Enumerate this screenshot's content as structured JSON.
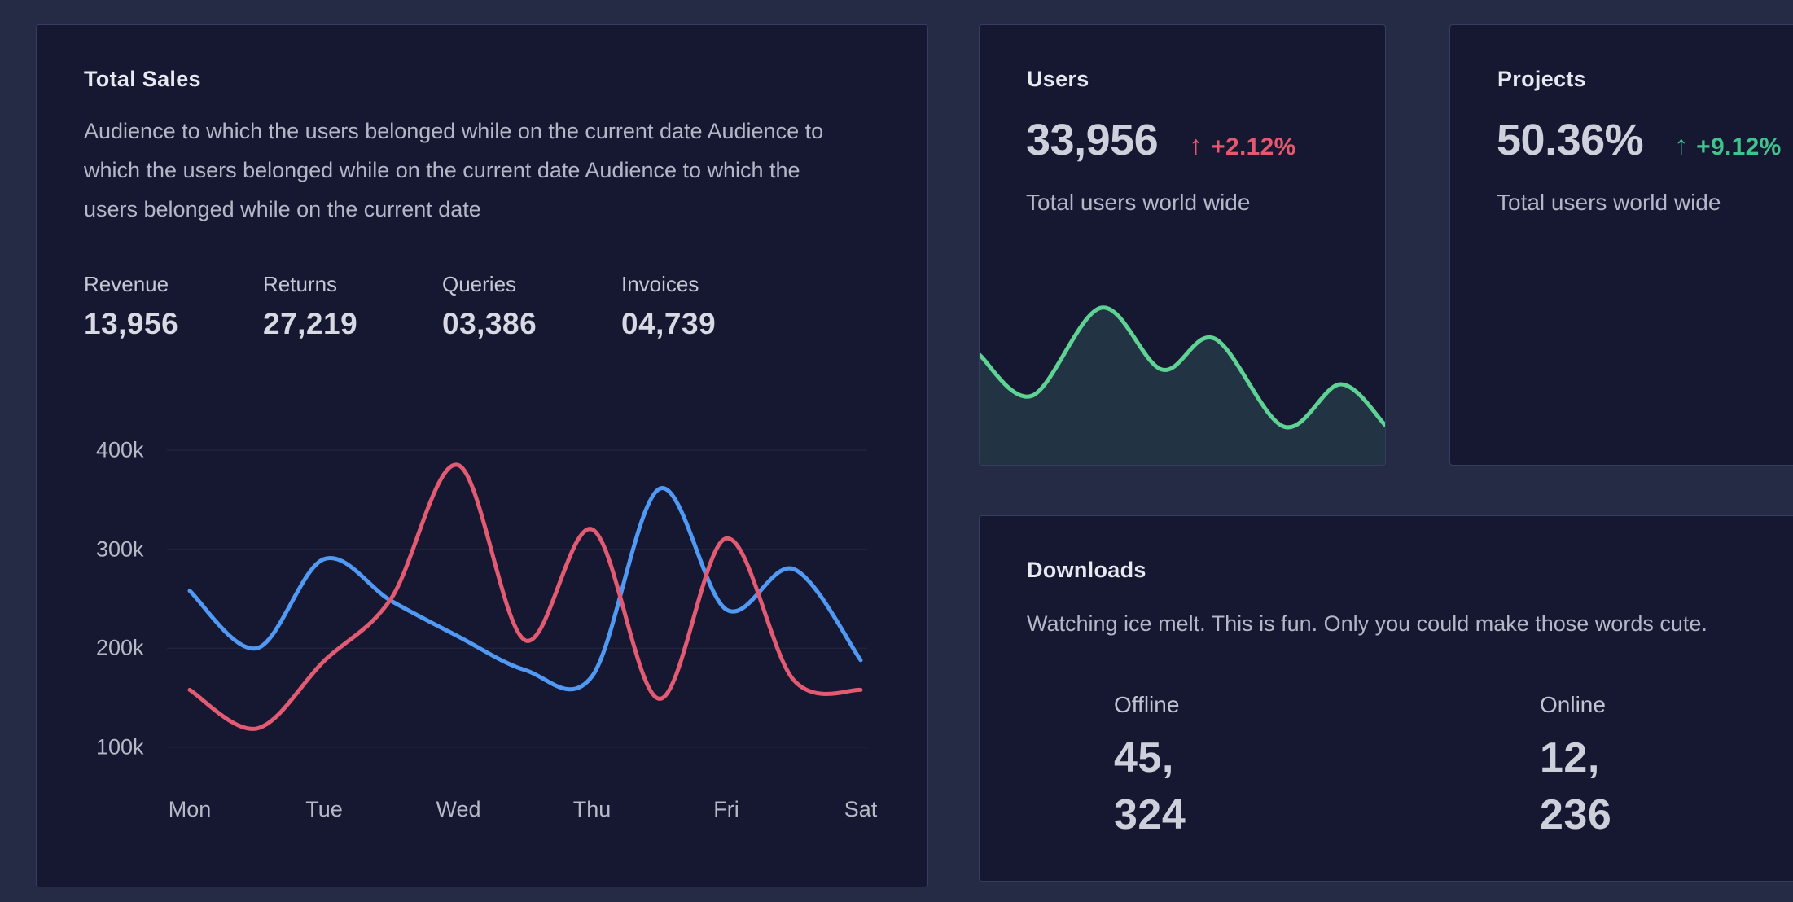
{
  "theme": {
    "page_bg": "#262b45",
    "card_bg": "#161831",
    "card_border": "#373d5e",
    "grid_color": "rgba(255,255,255,0.05)",
    "pink": "#e4596e",
    "green": "#3fc48e",
    "red_line": "#e25b72",
    "blue_line": "#509af5",
    "green_line": "#5ed394",
    "sparkline_fill": "#223343"
  },
  "total_sales_card": {
    "title": "Total Sales",
    "description": "Audience to which the users belonged while on the current date Audience to which the users belonged while on the current date Audience to which the users belonged while on the current date",
    "stats": [
      {
        "label": "Revenue",
        "value": "13,956"
      },
      {
        "label": "Returns",
        "value": "27,219"
      },
      {
        "label": "Queries",
        "value": "03,386"
      },
      {
        "label": "Invoices",
        "value": "04,739"
      }
    ]
  },
  "users_card": {
    "title": "Users",
    "value": "33,956",
    "delta_arrow": "↑",
    "delta": "+2.12%",
    "subtitle": "Total users world wide"
  },
  "projects_card": {
    "title": "Projects",
    "value": "50.36%",
    "delta_arrow": "↑",
    "delta": "+9.12%",
    "subtitle": "Total users world wide"
  },
  "downloads_card": {
    "title": "Downloads",
    "description": "Watching ice melt. This is fun. Only you could make those words cute.",
    "stats": [
      {
        "label": "Offline",
        "value_line1": "45,",
        "value_line2": "324"
      },
      {
        "label": "Online",
        "value_line1": "12,",
        "value_line2": "236"
      }
    ]
  },
  "chart_data": [
    {
      "type": "line",
      "card": "total-sales",
      "categories": [
        "Mon",
        "Tue",
        "Wed",
        "Thu",
        "Fri",
        "Sat"
      ],
      "x": [
        0,
        0.5,
        1,
        1.5,
        2,
        2.5,
        3,
        3.5,
        4,
        4.5,
        5
      ],
      "yticks": [
        "400k",
        "300k",
        "200k",
        "100k"
      ],
      "ytick_values": [
        400,
        300,
        200,
        100
      ],
      "ylim": [
        60,
        430
      ],
      "unit": "k",
      "grid": "horizontal",
      "legend": "none",
      "series": [
        {
          "name": "blue",
          "color": "#509af5",
          "values": [
            258,
            200,
            290,
            248,
            212,
            178,
            172,
            361,
            239,
            280,
            188
          ]
        },
        {
          "name": "red",
          "color": "#e25b72",
          "values": [
            158,
            119,
            187,
            250,
            385,
            208,
            320,
            149,
            311,
            168,
            158
          ]
        }
      ]
    },
    {
      "type": "area",
      "card": "users",
      "color": "#5ed394",
      "fill": "#223343",
      "x_pct": [
        0,
        13,
        30,
        45,
        58,
        75,
        89,
        100
      ],
      "values": [
        65,
        40,
        94,
        56,
        75,
        21,
        47,
        22
      ],
      "ylim": [
        0,
        100
      ],
      "grid": "off",
      "legend": "none"
    }
  ]
}
